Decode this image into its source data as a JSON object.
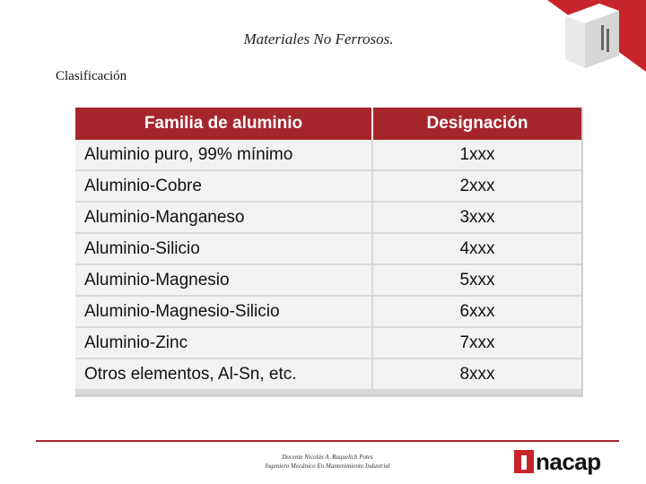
{
  "slide": {
    "title": "Materiales No Ferrosos.",
    "section_label": "Clasificación"
  },
  "table": {
    "headers": [
      "Familia de aluminio",
      "Designación"
    ],
    "rows": [
      {
        "family": "Aluminio puro, 99% mínimo",
        "designation": "1xxx"
      },
      {
        "family": "Aluminio-Cobre",
        "designation": "2xxx"
      },
      {
        "family": "Aluminio-Manganeso",
        "designation": "3xxx"
      },
      {
        "family": "Aluminio-Silicio",
        "designation": "4xxx"
      },
      {
        "family": "Aluminio-Magnesio",
        "designation": "5xxx"
      },
      {
        "family": "Aluminio-Magnesio-Silicio",
        "designation": "6xxx"
      },
      {
        "family": "Aluminio-Zinc",
        "designation": "7xxx"
      },
      {
        "family": "Otros elementos, Al-Sn, etc.",
        "designation": "8xxx"
      }
    ]
  },
  "footer": {
    "line1": "Docente Nicolás A. Raquelich Potes",
    "line2": "Ingeniero Mecánico En Mantenimiento Industrial",
    "brand": "nacap"
  },
  "colors": {
    "accent": "#a6262c",
    "row_bg": "#f2f2f2"
  }
}
